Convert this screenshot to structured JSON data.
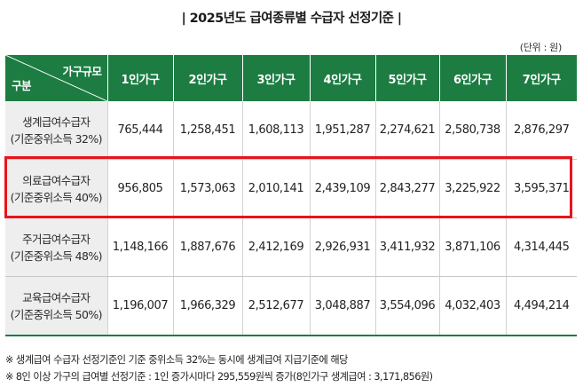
{
  "title": "| 2025년도 급여종류별 수급자 선정기준 |",
  "unit": "(단위 : 원)",
  "table": {
    "corner_top": "가구규모",
    "corner_bottom": "구분",
    "columns": [
      "1인가구",
      "2인가구",
      "3인가구",
      "4인가구",
      "5인가구",
      "6인가구",
      "7인가구"
    ],
    "rows": [
      {
        "name": "생계급여수급자",
        "sub": "(기준중위소득 32%)",
        "values": [
          "765,444",
          "1,258,451",
          "1,608,113",
          "1,951,287",
          "2,274,621",
          "2,580,738",
          "2,876,297"
        ]
      },
      {
        "name": "의료급여수급자",
        "sub": "(기준중위소득 40%)",
        "values": [
          "956,805",
          "1,573,063",
          "2,010,141",
          "2,439,109",
          "2,843,277",
          "3,225,922",
          "3,595,371"
        ]
      },
      {
        "name": "주거급여수급자",
        "sub": "(기준중위소득 48%)",
        "values": [
          "1,148,166",
          "1,887,676",
          "2,412,169",
          "2,926,931",
          "3,411,932",
          "3,871,106",
          "4,314,445"
        ]
      },
      {
        "name": "교육급여수급자",
        "sub": "(기준중위소득 50%)",
        "values": [
          "1,196,007",
          "1,966,329",
          "2,512,677",
          "3,048,887",
          "3,554,096",
          "4,032,403",
          "4,494,214"
        ]
      }
    ]
  },
  "notes": [
    "※ 생계급여 수급자 선정기준인 기준 중위소득 32%는 동시에 생계급여 지급기준에 해당",
    "※ 8인 이상 가구의 급여별 선정기준 : 1인 증가시마다 295,559원씩 증가(8인가구 생계급여 : 3,171,856원)"
  ],
  "colors": {
    "header_bg": "#1c7c42",
    "row_head_bg": "#eeeeee",
    "highlight": "#e8141b"
  }
}
